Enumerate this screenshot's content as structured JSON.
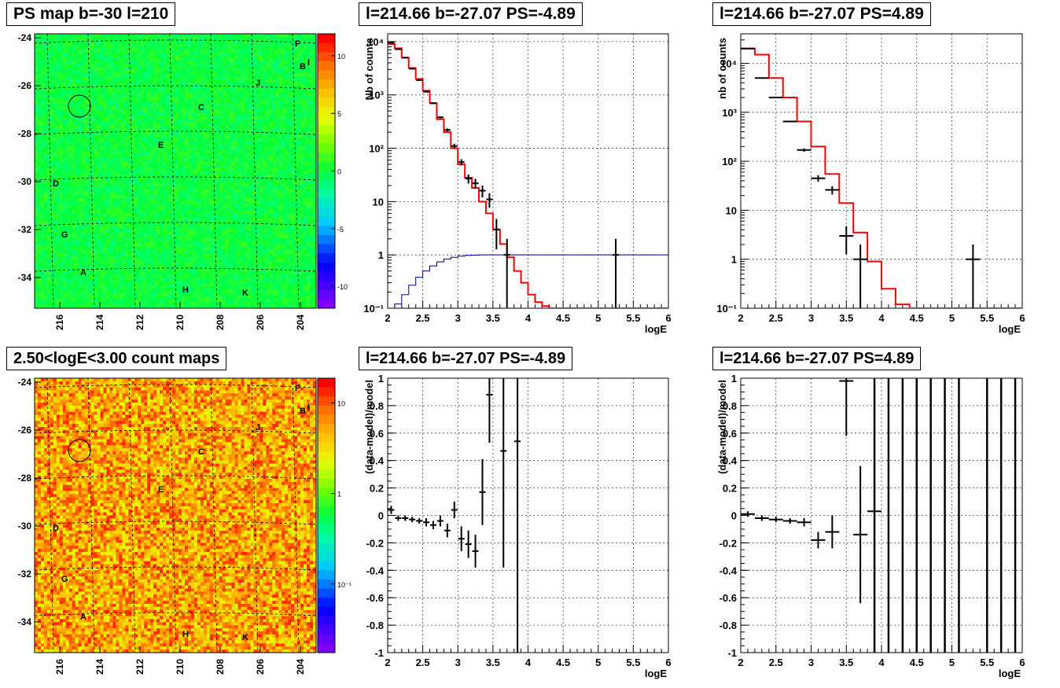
{
  "titles": {
    "map_ps": "PS map b=-30 l=210",
    "map_counts": "2.50<logE<3.00 count maps",
    "spec_neg": "l=214.66 b=-27.07 PS=-4.89",
    "spec_pos": "l=214.66 b=-27.07 PS=4.89",
    "res_neg": "l=214.66 b=-27.07 PS=-4.89",
    "res_pos": "l=214.66 b=-27.07 PS=4.89"
  },
  "chart_data": [
    {
      "id": "ps_map",
      "type": "heatmap",
      "title": "PS map b=-30 l=210",
      "x_ticks": [
        "216",
        "214",
        "212",
        "210",
        "208",
        "206",
        "204"
      ],
      "y_ticks": [
        "-24",
        "-26",
        "-28",
        "-30",
        "-32",
        "-34"
      ],
      "colorbar_ticks": [
        "10",
        "5",
        "0",
        "-5",
        "-10"
      ],
      "colorbar_range": [
        -13,
        13
      ],
      "source_labels": [
        "F",
        "B",
        "I",
        "J",
        "C",
        "E",
        "D",
        "G",
        "A",
        "H",
        "K"
      ],
      "circle_marker": {
        "l": 214.9,
        "b": -27.0
      }
    },
    {
      "id": "count_map",
      "type": "heatmap",
      "title": "2.50<logE<3.00 count maps",
      "x_ticks": [
        "216",
        "214",
        "212",
        "210",
        "208",
        "206",
        "204"
      ],
      "y_ticks": [
        "-24",
        "-26",
        "-28",
        "-30",
        "-32",
        "-34"
      ],
      "colorbar_ticks": [
        "10",
        "1",
        "10⁻¹"
      ],
      "colorbar_scale": "log",
      "source_labels": [
        "F",
        "B",
        "I",
        "J",
        "C",
        "E",
        "D",
        "G",
        "A",
        "H",
        "K"
      ],
      "circle_marker": {
        "l": 214.9,
        "b": -27.0
      }
    },
    {
      "id": "spectrum_neg",
      "type": "line",
      "title": "l=214.66 b=-27.07 PS=-4.89",
      "xlabel": "logE",
      "ylabel": "Nb of counts",
      "y_scale": "log",
      "xlim": [
        2,
        6
      ],
      "ylim": [
        0.1,
        14000
      ],
      "x_ticks": [
        "2",
        "2.5",
        "3",
        "3.5",
        "4",
        "4.5",
        "5",
        "5.5",
        "6"
      ],
      "y_ticks": [
        "10⁻¹",
        "1",
        "10",
        "10²",
        "10³",
        "10⁴"
      ],
      "model_edges": [
        2.0,
        2.1,
        2.2,
        2.3,
        2.4,
        2.5,
        2.6,
        2.7,
        2.8,
        2.9,
        3.0,
        3.1,
        3.2,
        3.3,
        3.4,
        3.5,
        3.6,
        3.7,
        3.8,
        3.9,
        4.0,
        4.1,
        4.2,
        4.3,
        4.4,
        4.5,
        6.0
      ],
      "model_values": [
        9000,
        7500,
        5000,
        3200,
        2000,
        1200,
        700,
        350,
        200,
        100,
        50,
        28,
        18,
        10,
        6,
        3,
        1.6,
        0.9,
        0.5,
        0.3,
        0.18,
        0.13,
        0.11,
        0.1,
        0.1,
        0.1
      ],
      "data_points": [
        {
          "x": 2.05,
          "y": 9500
        },
        {
          "x": 2.15,
          "y": 7200
        },
        {
          "x": 2.25,
          "y": 5000
        },
        {
          "x": 2.35,
          "y": 3100
        },
        {
          "x": 2.45,
          "y": 1900
        },
        {
          "x": 2.55,
          "y": 1150
        },
        {
          "x": 2.65,
          "y": 700
        },
        {
          "x": 2.75,
          "y": 380
        },
        {
          "x": 2.85,
          "y": 220
        },
        {
          "x": 2.95,
          "y": 110
        },
        {
          "x": 3.05,
          "y": 55
        },
        {
          "x": 3.15,
          "y": 27
        },
        {
          "x": 3.25,
          "y": 22
        },
        {
          "x": 3.35,
          "y": 16
        },
        {
          "x": 3.45,
          "y": 11
        },
        {
          "x": 3.55,
          "y": 3
        },
        {
          "x": 3.7,
          "y": 1
        },
        {
          "x": 5.25,
          "y": 1
        }
      ],
      "efficiency_edges": [
        2.0,
        2.1,
        2.2,
        2.3,
        2.4,
        2.5,
        2.6,
        2.7,
        2.8,
        2.9,
        3.0,
        3.1,
        3.2,
        3.3,
        6.0
      ],
      "efficiency_values": [
        0.1,
        0.12,
        0.18,
        0.27,
        0.38,
        0.5,
        0.62,
        0.74,
        0.84,
        0.9,
        0.95,
        0.98,
        0.99,
        1.0
      ]
    },
    {
      "id": "spectrum_pos",
      "type": "line",
      "title": "l=214.66 b=-27.07 PS=4.89",
      "xlabel": "logE",
      "ylabel": "nb of counts",
      "y_scale": "log",
      "xlim": [
        2,
        6
      ],
      "ylim": [
        0.1,
        40000
      ],
      "x_ticks": [
        "2",
        "2.5",
        "3",
        "3.5",
        "4",
        "4.5",
        "5",
        "5.5",
        "6"
      ],
      "y_ticks": [
        "10⁻¹",
        "1",
        "10",
        "10²",
        "10³",
        "10⁴"
      ],
      "model_edges": [
        2.0,
        2.2,
        2.4,
        2.6,
        2.8,
        3.0,
        3.2,
        3.4,
        3.6,
        3.8,
        4.0,
        4.2,
        4.4,
        6.0
      ],
      "model_values": [
        20000,
        15000,
        5000,
        2000,
        650,
        200,
        55,
        14,
        3.5,
        0.9,
        0.25,
        0.12,
        0.1
      ],
      "data_points": [
        {
          "x": 2.1,
          "y": 20000
        },
        {
          "x": 2.3,
          "y": 5000
        },
        {
          "x": 2.5,
          "y": 2000
        },
        {
          "x": 2.7,
          "y": 650
        },
        {
          "x": 2.9,
          "y": 170
        },
        {
          "x": 3.1,
          "y": 45
        },
        {
          "x": 3.3,
          "y": 26
        },
        {
          "x": 3.5,
          "y": 3
        },
        {
          "x": 3.7,
          "y": 1
        },
        {
          "x": 5.3,
          "y": 1
        }
      ]
    },
    {
      "id": "residual_neg",
      "type": "scatter",
      "title": "l=214.66 b=-27.07 PS=-4.89",
      "xlabel": "logE",
      "ylabel": "(data-model)/model",
      "xlim": [
        2,
        6
      ],
      "ylim": [
        -1,
        1
      ],
      "x_ticks": [
        "2",
        "2.5",
        "3",
        "3.5",
        "4",
        "4.5",
        "5",
        "5.5",
        "6"
      ],
      "y_ticks": [
        "1",
        "0.8",
        "0.6",
        "0.4",
        "0.2",
        "0",
        "-0.2",
        "-0.4",
        "-0.6",
        "-0.8",
        "-1"
      ],
      "points": [
        {
          "x": 2.05,
          "y": 0.04,
          "err": 0.03
        },
        {
          "x": 2.15,
          "y": -0.02,
          "err": 0.02
        },
        {
          "x": 2.25,
          "y": -0.02,
          "err": 0.02
        },
        {
          "x": 2.35,
          "y": -0.03,
          "err": 0.02
        },
        {
          "x": 2.45,
          "y": -0.04,
          "err": 0.02
        },
        {
          "x": 2.55,
          "y": -0.05,
          "err": 0.03
        },
        {
          "x": 2.65,
          "y": -0.07,
          "err": 0.03
        },
        {
          "x": 2.75,
          "y": -0.04,
          "err": 0.04
        },
        {
          "x": 2.85,
          "y": -0.11,
          "err": 0.05
        },
        {
          "x": 2.95,
          "y": 0.04,
          "err": 0.06
        },
        {
          "x": 3.05,
          "y": -0.17,
          "err": 0.09
        },
        {
          "x": 3.15,
          "y": -0.21,
          "err": 0.1
        },
        {
          "x": 3.25,
          "y": -0.26,
          "err": 0.12
        },
        {
          "x": 3.35,
          "y": 0.17,
          "err": 0.24
        },
        {
          "x": 3.45,
          "y": 0.88,
          "err": 0.35
        },
        {
          "x": 3.65,
          "y": 0.47,
          "err": 0.85
        },
        {
          "x": 3.85,
          "y": 0.54,
          "err": 1.6
        }
      ]
    },
    {
      "id": "residual_pos",
      "type": "scatter",
      "title": "l=214.66 b=-27.07 PS=4.89",
      "xlabel": "logE",
      "ylabel": "(data-model)/model",
      "xlim": [
        2,
        6
      ],
      "ylim": [
        -1,
        1
      ],
      "x_ticks": [
        "2",
        "2.5",
        "3",
        "3.5",
        "4",
        "4.5",
        "5",
        "5.5",
        "6"
      ],
      "y_ticks": [
        "1",
        "0.8",
        "0.6",
        "0.4",
        "0.2",
        "0",
        "-0.2",
        "-0.4",
        "-0.6",
        "-0.8",
        "-1"
      ],
      "points": [
        {
          "x": 2.1,
          "y": 0.01,
          "err": 0.02
        },
        {
          "x": 2.3,
          "y": -0.02,
          "err": 0.02
        },
        {
          "x": 2.5,
          "y": -0.03,
          "err": 0.02
        },
        {
          "x": 2.7,
          "y": -0.04,
          "err": 0.02
        },
        {
          "x": 2.9,
          "y": -0.05,
          "err": 0.03
        },
        {
          "x": 3.1,
          "y": -0.18,
          "err": 0.06
        },
        {
          "x": 3.3,
          "y": -0.12,
          "err": 0.12
        },
        {
          "x": 3.5,
          "y": 0.98,
          "err": 0.4
        },
        {
          "x": 3.7,
          "y": -0.14,
          "err": 0.5
        },
        {
          "x": 3.9,
          "y": 0.03,
          "err": 1.5
        }
      ],
      "full_range_error_bars_x": [
        3.9,
        4.1,
        4.3,
        4.5,
        4.7,
        4.9,
        5.1,
        5.5,
        5.7,
        5.9
      ]
    }
  ]
}
